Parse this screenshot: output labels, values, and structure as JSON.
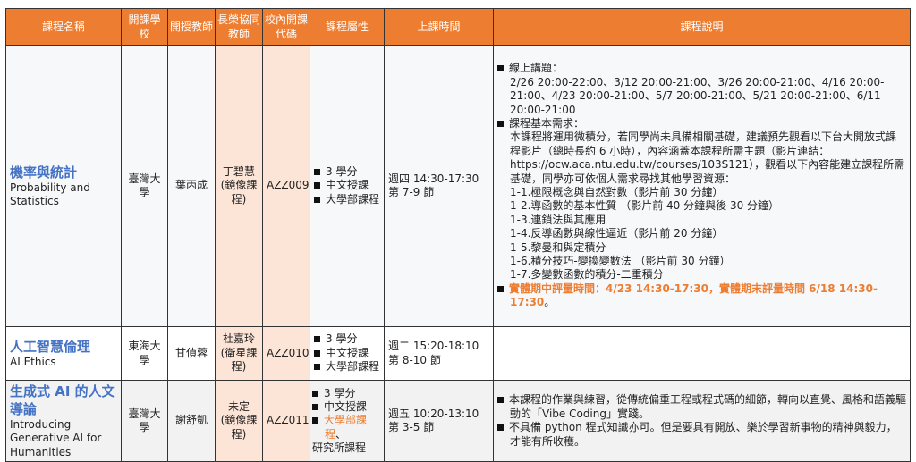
{
  "headers": [
    "課程名稱",
    "開課學校",
    "開授教師",
    "長榮協同教師",
    "校內開課代碼",
    "課程屬性",
    "上課時間",
    "課程說明"
  ],
  "rows": [
    {
      "name_zh": "機率與統計",
      "name_en": "Probability and Statistics",
      "school": "臺灣大學",
      "teacher": "葉丙成",
      "co_teacher": "丁碧慧",
      "co_type": "(鏡像課程)",
      "code": "AZZ009",
      "attrs": [
        "3 學分",
        "中文授課",
        "大學部課程"
      ],
      "time": "週四  14:30-17:30",
      "period": "第 7-9 節",
      "desc": {
        "h1": "線上講題：",
        "l1": "2/26 20:00-22:00、3/12 20:00-21:00、3/26 20:00-21:00、4/16 20:00-21:00、4/23 20:00-21:00、5/7 20:00-21:00、5/21 20:00-21:00、6/11 20:00-21:00",
        "h2": "課程基本需求：",
        "l2": "本課程將運用微積分，若同學尚未具備相關基礎，建議預先觀看以下台大開放式課程影片（總時長約 6 小時），內容涵蓋本課程所需主題（影片連結：https://ocw.aca.ntu.edu.tw/courses/103S121），觀看以下內容能建立課程所需基礎，同學亦可依個人需求尋找其他學習資源：",
        "items": [
          "1-1.極限概念與自然對數（影片前 30 分鐘）",
          "1-2.導函數的基本性質 （影片前 40 分鐘與後 30 分鐘）",
          "1-3.連鎖法與其應用",
          "1-4.反導函數與線性逼近（影片前 20 分鐘）",
          "1-5.黎曼和與定積分",
          "1-6.積分技巧-變換變數法 （影片前 30 分鐘）",
          "1-7.多變數函數的積分-二重積分"
        ],
        "exam": "實體期中評量時間：4/23 14:30-17:30，實體期末評量時間 6/18 14:30-17:30",
        "exam_end": "。"
      }
    },
    {
      "name_zh": "人工智慧倫理",
      "name_en": "AI Ethics",
      "school": "東海大學",
      "teacher": "甘偵蓉",
      "co_teacher": "杜嘉玲",
      "co_type": "(衛星課程)",
      "code": "AZZ010",
      "attrs": [
        "3 學分",
        "中文授課",
        "大學部課程"
      ],
      "time": "週二 15:20-18:10",
      "period": "第 8-10 節"
    },
    {
      "name_zh": "生成式 AI 的人文導論",
      "name_en": "Introducing Generative AI for Humanities",
      "school": "臺灣大學",
      "teacher": "謝舒凱",
      "co_teacher": "未定",
      "co_type": "(鏡像課程)",
      "code": "AZZ011",
      "attrs": [
        "3 學分",
        "中文授課"
      ],
      "attr3": "大學部課程",
      "attr3_tail": "、",
      "attr4": "研究所課程",
      "time": "週五  10:20-13:10",
      "period": "第 3-5 節",
      "desc": [
        "本課程的作業與練習，從傳統偏重工程或程式碼的細節，轉向以直覺、風格和語義驅動的「Vibe Coding」實踐。",
        "不具備  python  程式知識亦可。但是要具有開放、樂於學習新事物的精神與毅力，才能有所收穫。"
      ]
    }
  ],
  "colors": {
    "header": "#ed7d31",
    "peach": "#fce4d6",
    "title": "#4472c4",
    "highlight": "#ed7d31"
  }
}
